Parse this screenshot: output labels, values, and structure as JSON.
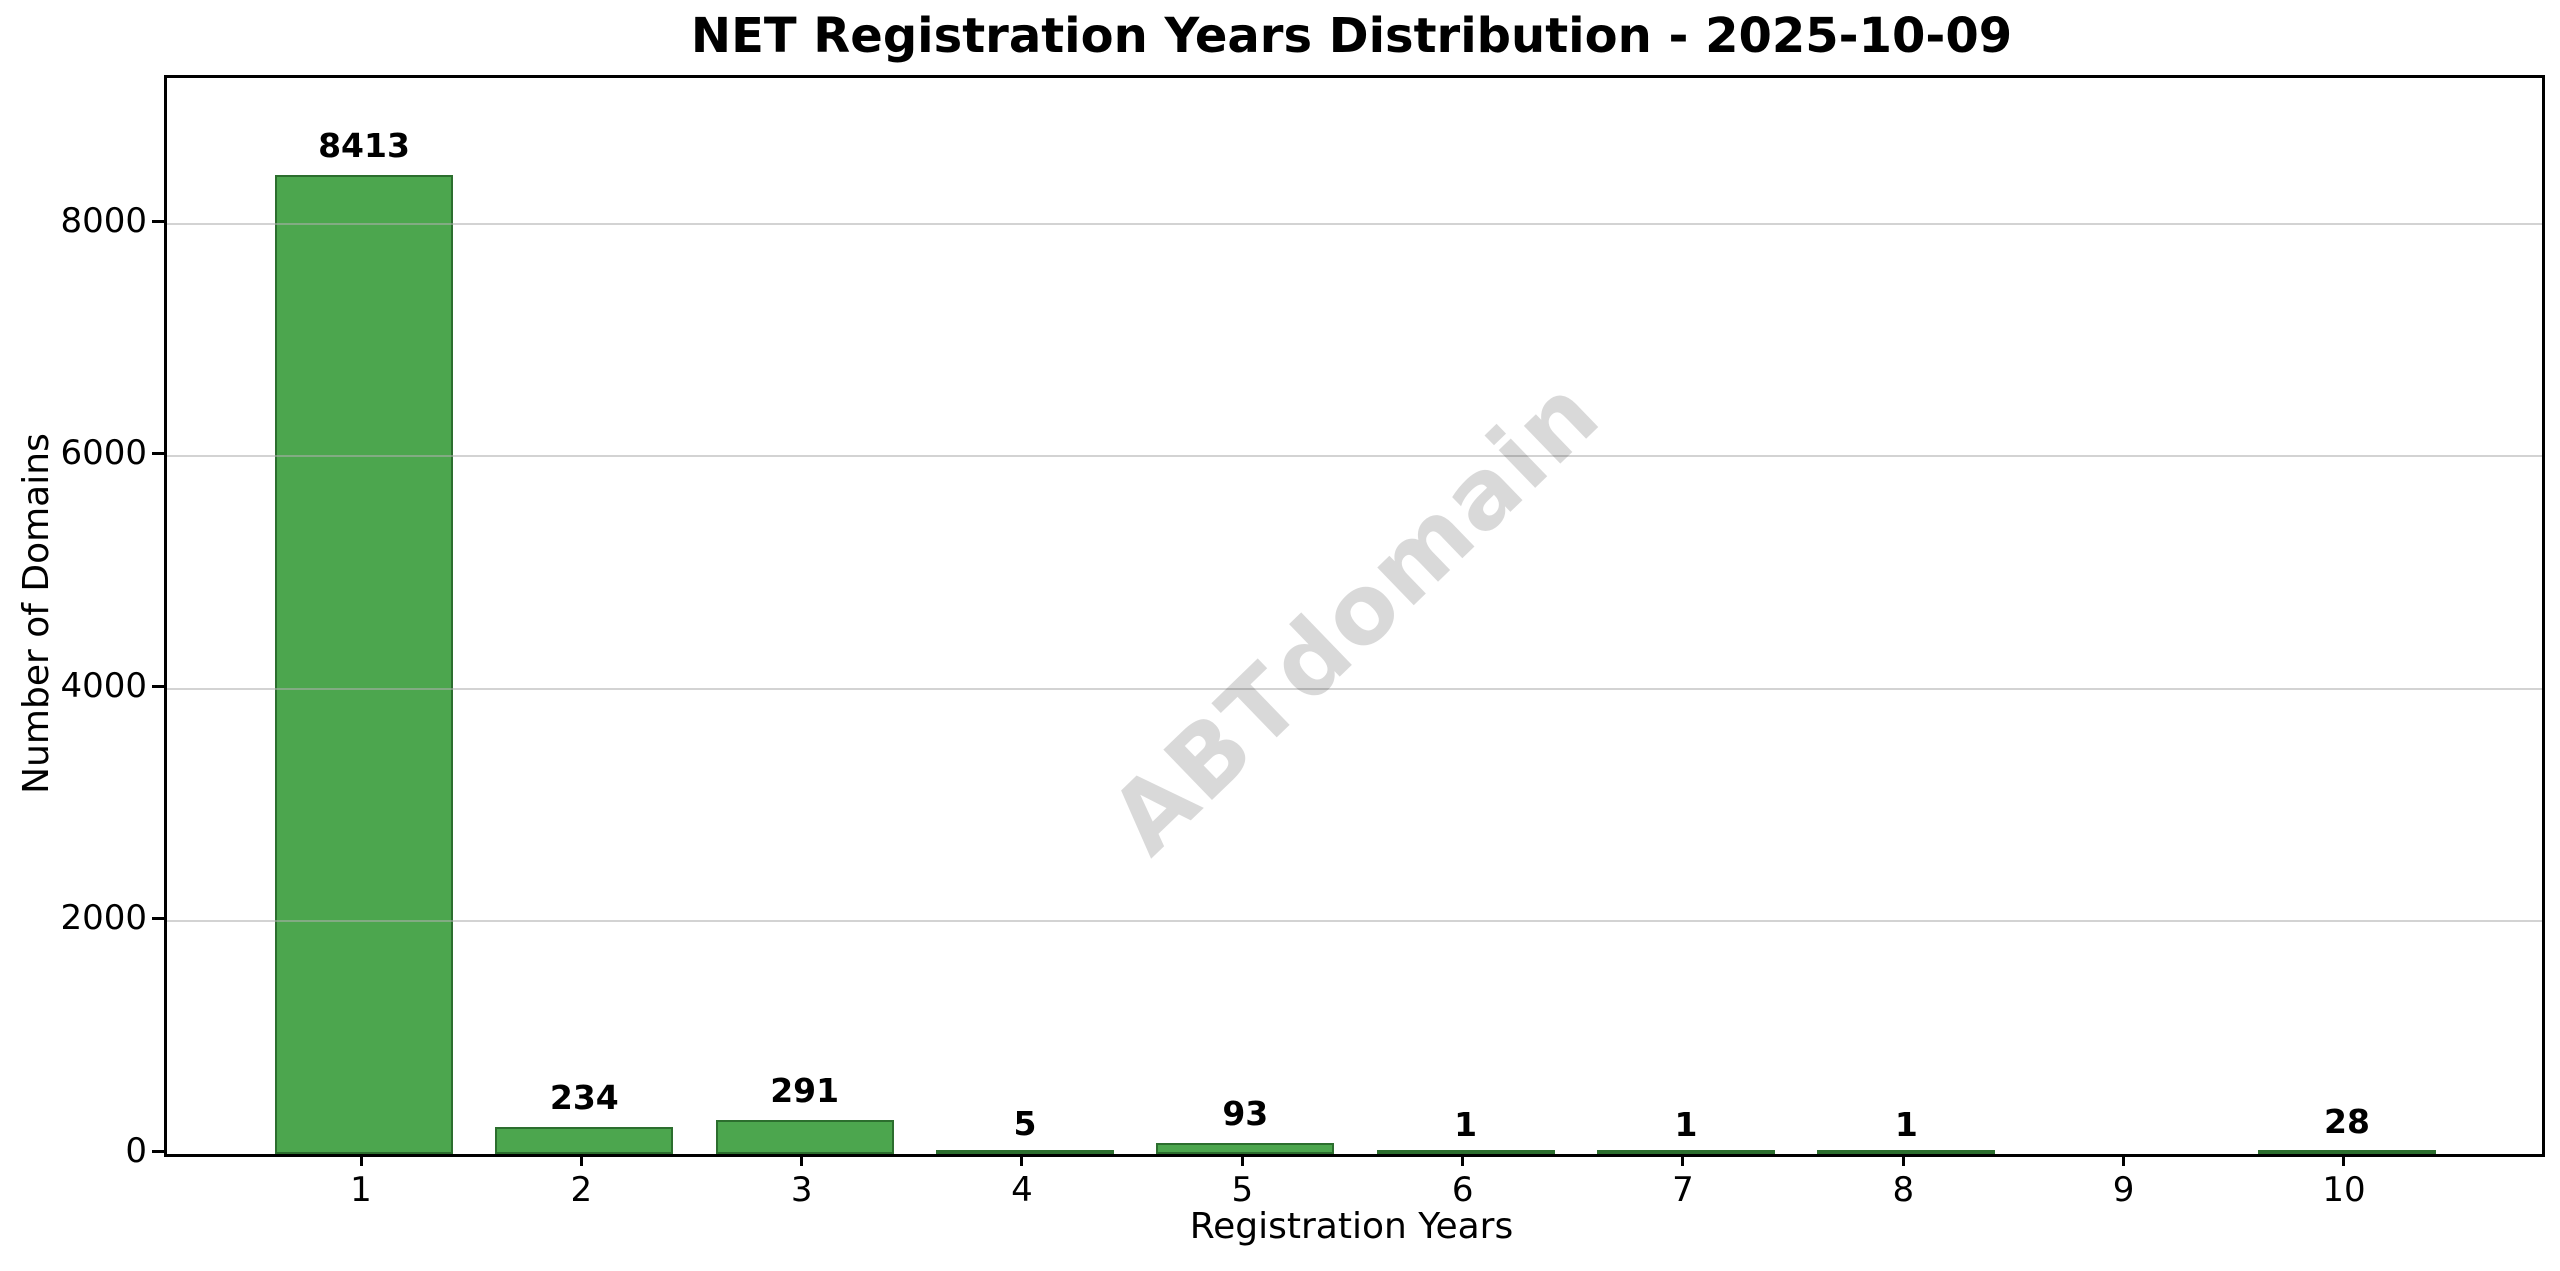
{
  "chart_data": {
    "type": "bar",
    "title": "NET Registration Years Distribution - 2025-10-09",
    "xlabel": "Registration Years",
    "ylabel": "Number of Domains",
    "categories": [
      "1",
      "2",
      "3",
      "4",
      "5",
      "6",
      "7",
      "8",
      "9",
      "10"
    ],
    "values": [
      8413,
      234,
      291,
      5,
      93,
      1,
      1,
      1,
      0,
      28
    ],
    "bar_value_labels": [
      "8413",
      "234",
      "291",
      "5",
      "93",
      "1",
      "1",
      "1",
      "",
      "28"
    ],
    "yticks": [
      0,
      2000,
      4000,
      6000,
      8000
    ],
    "ytick_labels": [
      "0",
      "2000",
      "4000",
      "6000",
      "8000"
    ],
    "ylim": [
      0,
      9251
    ],
    "grid": "horizontal",
    "legend_position": "none",
    "bar_color": "#4CA64E",
    "bar_edge_color": "#2C6E2E",
    "gridline_color": "rgba(175,175,175,0.55)",
    "watermark": "ABTdomain"
  }
}
